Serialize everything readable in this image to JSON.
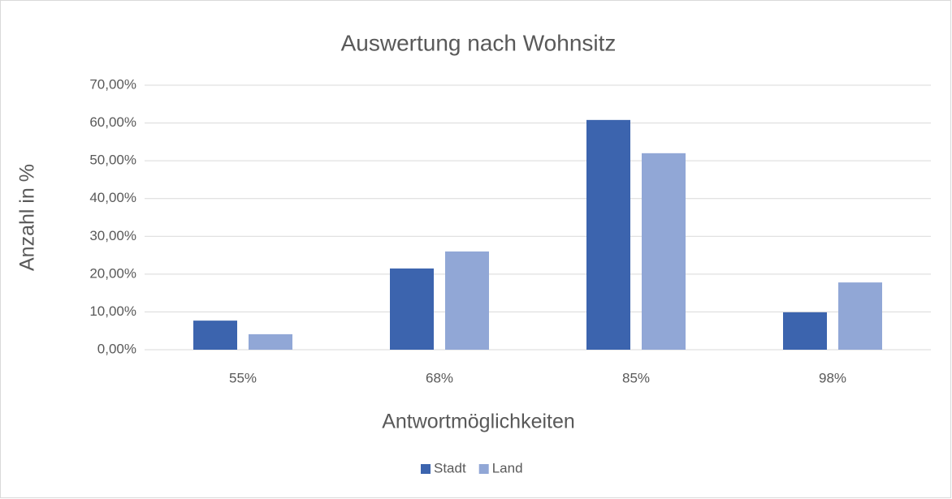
{
  "chart_data": {
    "type": "bar",
    "title": "Auswertung nach Wohnsitz",
    "x_label": "Antwortmöglichkeiten",
    "y_label": "Anzahl in %",
    "categories": [
      "55%",
      "68%",
      "85%",
      "98%"
    ],
    "series": [
      {
        "name": "Stadt",
        "color": "#3c64ae",
        "values": [
          7.7,
          21.5,
          60.8,
          9.9
        ]
      },
      {
        "name": "Land",
        "color": "#91a7d6",
        "values": [
          4.1,
          26.0,
          52.0,
          17.8
        ]
      }
    ],
    "ylim": [
      0,
      70
    ],
    "yticks": [
      {
        "value": 0,
        "label": "0,00%"
      },
      {
        "value": 10,
        "label": "10,00%"
      },
      {
        "value": 20,
        "label": "20,00%"
      },
      {
        "value": 30,
        "label": "30,00%"
      },
      {
        "value": 40,
        "label": "40,00%"
      },
      {
        "value": 50,
        "label": "50,00%"
      },
      {
        "value": 60,
        "label": "60,00%"
      },
      {
        "value": 70,
        "label": "70,00%"
      }
    ],
    "grid": true,
    "legend": "bottom"
  }
}
